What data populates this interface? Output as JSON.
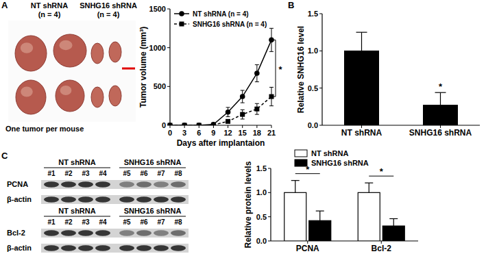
{
  "panel_labels": [
    "A",
    "B",
    "C"
  ],
  "photo": {
    "groups": [
      {
        "label": "NT shRNA",
        "n": "(n = 4)"
      },
      {
        "label": "SNHG16 shRNA",
        "n": "(n = 4)"
      }
    ],
    "caption": "One tumor per mouse"
  },
  "blots": {
    "groups": [
      "NT shRNA",
      "SNHG16 shRNA"
    ],
    "lanes": [
      "#1",
      "#2",
      "#3",
      "#4",
      "#5",
      "#6",
      "#7",
      "#8"
    ],
    "rows": [
      [
        "PCNA",
        "β-actin"
      ],
      [
        "Bcl-2",
        "β-actin"
      ]
    ]
  },
  "chart_data": [
    {
      "type": "line",
      "x_label": "Days after implantaion",
      "y_label": "Tumor volume (mm³)",
      "x": [
        0,
        3,
        6,
        9,
        12,
        15,
        18,
        21
      ],
      "xlim": [
        0,
        21
      ],
      "xticks": [
        0,
        3,
        6,
        9,
        12,
        15,
        18,
        21
      ],
      "ylim": [
        0,
        1500
      ],
      "yticks": [
        0,
        500,
        1000,
        1500
      ],
      "legend": "upper left",
      "series": [
        {
          "name": "NT shRNA (n = 4)",
          "color": "#000000",
          "marker": "circle",
          "line_style": "solid",
          "values": [
            0,
            0,
            0,
            10,
            170,
            370,
            670,
            1100
          ],
          "error": [
            0,
            0,
            0,
            5,
            60,
            80,
            110,
            150
          ]
        },
        {
          "name": "SNHG16 shRNA (n = 4)",
          "color": "#000000",
          "marker": "square",
          "line_style": "dashed",
          "values": [
            0,
            0,
            0,
            5,
            50,
            140,
            210,
            370
          ],
          "error": [
            0,
            0,
            0,
            3,
            20,
            60,
            70,
            120
          ]
        }
      ],
      "annotations": [
        "*"
      ]
    },
    {
      "type": "bar",
      "y_label": "Relative SNHG16 level",
      "categories": [
        "NT shRNA",
        "SNHG16 shRNA"
      ],
      "values": [
        1.0,
        0.27
      ],
      "error": [
        0.25,
        0.17
      ],
      "color": "#000000",
      "ylim": [
        0,
        1.5
      ],
      "yticks": [
        {
          "value": 0,
          "label": "0.0"
        },
        0.5,
        {
          "value": 1,
          "label": "1.0"
        },
        1.5
      ],
      "annotations": [
        "*"
      ]
    },
    {
      "type": "bar",
      "y_label": "Relative protein levels",
      "categories": [
        "PCNA",
        "Bcl-2"
      ],
      "series": [
        {
          "name": "NT shRNA",
          "color": "#ffffff",
          "values": [
            1.0,
            1.0
          ],
          "error": [
            0.25,
            0.2
          ]
        },
        {
          "name": "SNHG16 shRNA",
          "color": "#000000",
          "values": [
            0.42,
            0.31
          ],
          "error": [
            0.2,
            0.15
          ]
        }
      ],
      "ylim": [
        0,
        1.5
      ],
      "yticks": [
        {
          "value": 0,
          "label": "0.0"
        },
        0.5,
        {
          "value": 1,
          "label": "1.0"
        },
        1.5
      ],
      "legend": "top",
      "annotations": [
        "*",
        "*"
      ]
    }
  ]
}
